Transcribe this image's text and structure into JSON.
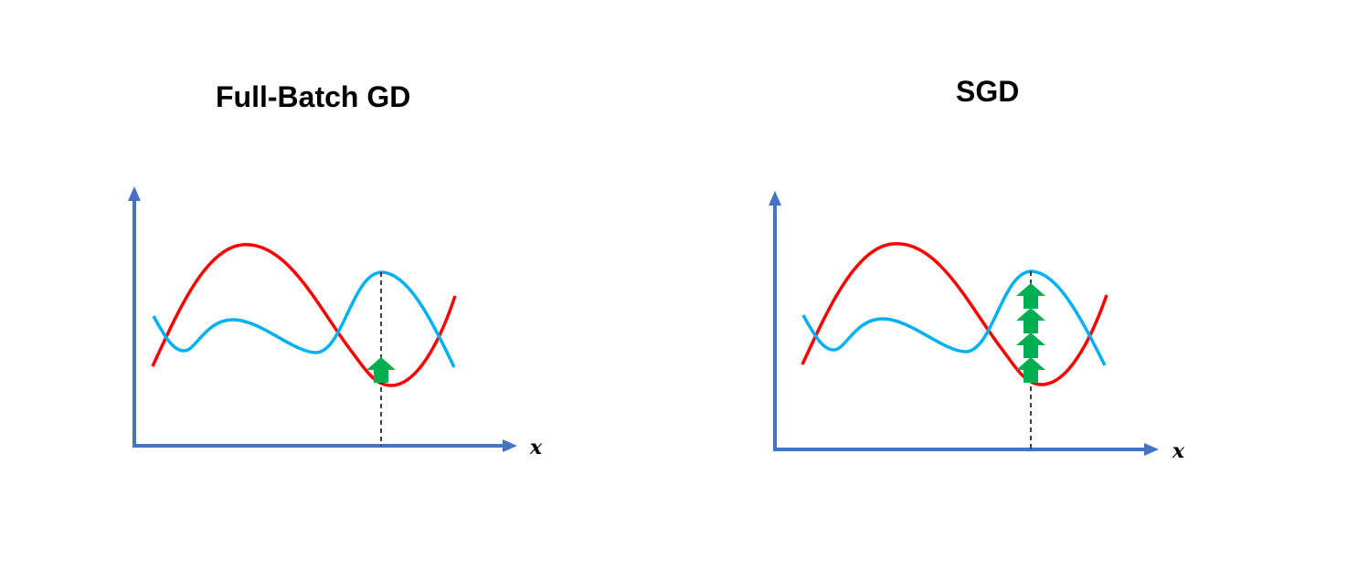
{
  "panels": [
    {
      "title": "Full-Batch GD",
      "xlabel": "x",
      "arrow_count": 1
    },
    {
      "title": "SGD",
      "xlabel": "x",
      "arrow_count": 4
    }
  ],
  "colors": {
    "axis": "#4472C4",
    "red_curve": "#FF0000",
    "blue_curve": "#00B0F0",
    "arrow": "#00B050",
    "dashed": "#000000"
  }
}
